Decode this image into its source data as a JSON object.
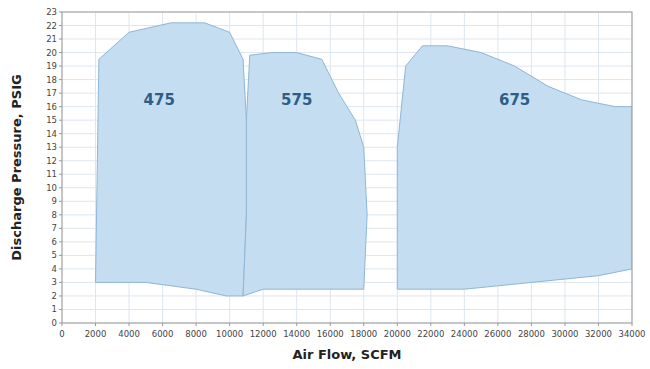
{
  "chart_data": {
    "type": "polygon",
    "xlabel": "Air Flow, SCFM",
    "ylabel": "Discharge Pressure, PSIG",
    "xlim": [
      0,
      34000
    ],
    "ylim": [
      0,
      23
    ],
    "xticks": [
      0,
      2000,
      4000,
      6000,
      8000,
      10000,
      12000,
      14000,
      16000,
      18000,
      20000,
      22000,
      24000,
      26000,
      28000,
      30000,
      32000,
      34000
    ],
    "yticks": [
      0,
      1,
      2,
      3,
      4,
      5,
      6,
      7,
      8,
      9,
      10,
      11,
      12,
      13,
      14,
      15,
      16,
      17,
      18,
      19,
      20,
      21,
      22,
      23
    ],
    "grid": true,
    "series": [
      {
        "color": "#c5ddf0",
        "x": [
          2000,
          2200,
          4000,
          6500,
          8500,
          10000,
          10800,
          11000,
          11000,
          10800,
          9800,
          8000,
          5000,
          3000,
          2000
        ],
        "values": [
          3.0,
          19.5,
          21.5,
          22.2,
          22.2,
          21.5,
          19.5,
          15.0,
          8.0,
          2.0,
          2.0,
          2.5,
          3.0,
          3.0,
          3.0
        ]
      },
      {
        "color": "#c5ddf0",
        "x": [
          10800,
          11000,
          11000,
          11200,
          12500,
          14000,
          15500,
          16500,
          17500,
          18000,
          18200,
          18000,
          15000,
          12000,
          10800
        ],
        "values": [
          2.0,
          8.0,
          15.0,
          19.8,
          20.0,
          20.0,
          19.5,
          17.0,
          15.0,
          13.0,
          8.0,
          2.5,
          2.5,
          2.5,
          2.0
        ]
      },
      {
        "color": "#c5ddf0",
        "x": [
          20000,
          20000,
          20500,
          21500,
          23000,
          25000,
          27000,
          29000,
          31000,
          33000,
          34000,
          34000,
          32000,
          28000,
          24000,
          20000
        ],
        "values": [
          2.5,
          13.0,
          19.0,
          20.5,
          20.5,
          20.0,
          19.0,
          17.5,
          16.5,
          16.0,
          16.0,
          4.0,
          3.5,
          3.0,
          2.5,
          2.5
        ]
      }
    ],
    "annotations": [
      {
        "text": "475",
        "x": 5800,
        "y": 16.5
      },
      {
        "text": "575",
        "x": 14000,
        "y": 16.5
      },
      {
        "text": "675",
        "x": 27000,
        "y": 16.5
      }
    ]
  }
}
